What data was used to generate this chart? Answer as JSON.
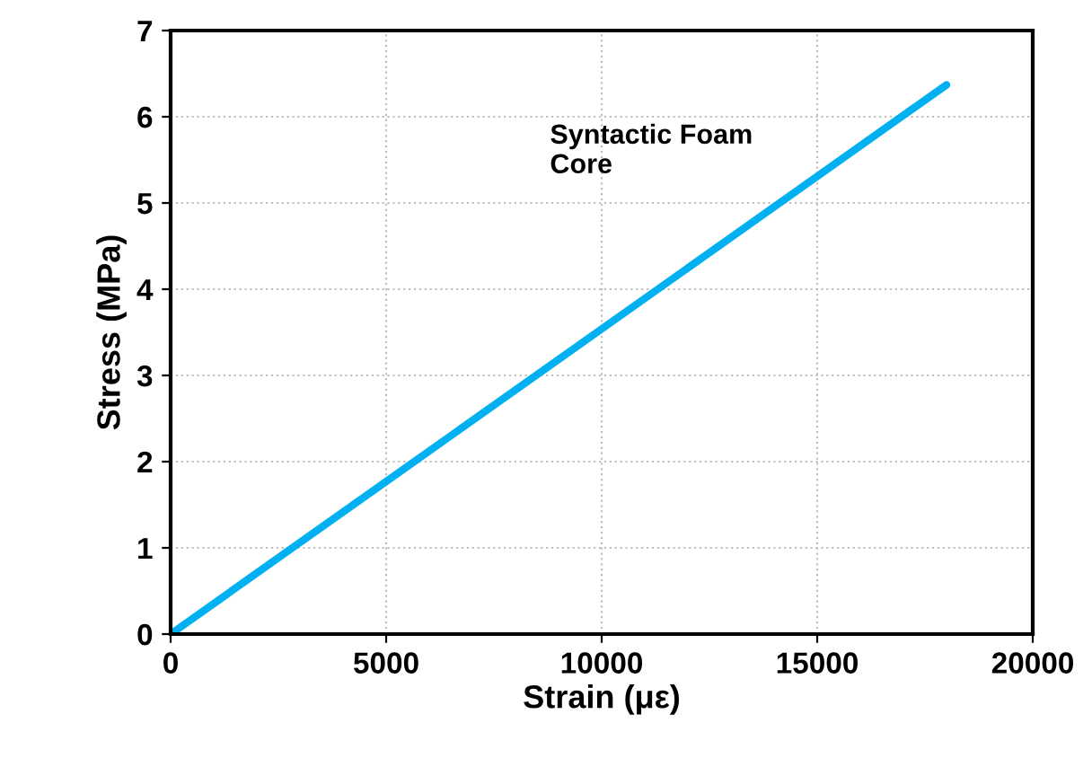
{
  "chart_data": {
    "type": "line",
    "xlabel": "Strain (με)",
    "ylabel": "Stress (MPa)",
    "series": [
      {
        "name": "Syntactic Foam\nCore",
        "color": "#00b0f0",
        "x": [
          0,
          18000
        ],
        "values": [
          0,
          6.37
        ]
      }
    ],
    "xlim": [
      0,
      20000
    ],
    "xticks": [
      0,
      5000,
      10000,
      15000,
      20000
    ],
    "ylim": [
      0,
      7
    ],
    "yticks": [
      0,
      1,
      2,
      3,
      4,
      5,
      6,
      7
    ],
    "grid": true,
    "marker": "none",
    "line_style": "solid"
  }
}
